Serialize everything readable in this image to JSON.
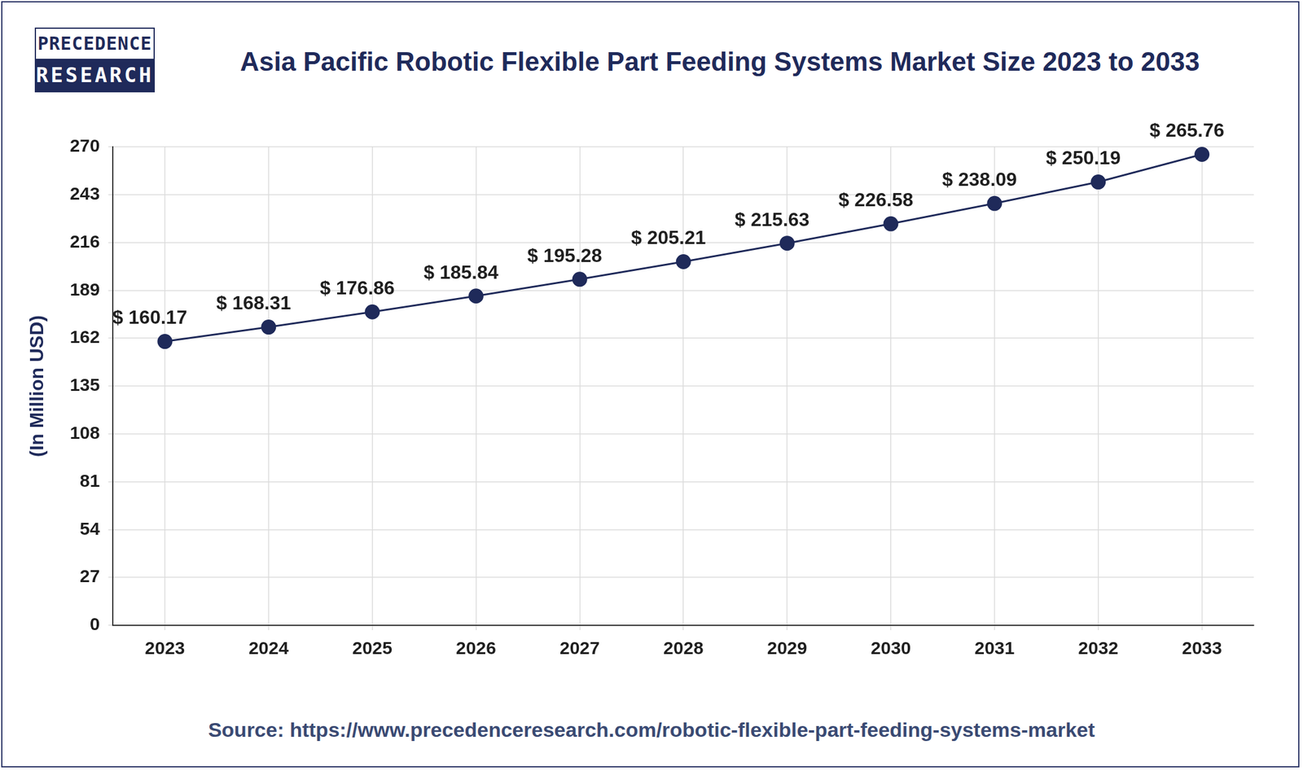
{
  "logo": [
    "PRECEDENCE",
    "RESEARCH"
  ],
  "source": "Source: https://www.precedenceresearch.com/robotic-flexible-part-feeding-systems-market",
  "chart_data": {
    "type": "line",
    "title": "Asia Pacific Robotic Flexible Part Feeding Systems Market Size 2023 to 2033",
    "y_label": "(In Million USD)",
    "categories": [
      "2023",
      "2024",
      "2025",
      "2026",
      "2027",
      "2028",
      "2029",
      "2030",
      "2031",
      "2032",
      "2033"
    ],
    "values": [
      160.17,
      168.31,
      176.86,
      185.84,
      195.28,
      205.21,
      215.63,
      226.58,
      238.09,
      250.19,
      265.76
    ],
    "value_labels": [
      "$ 160.17",
      "$ 168.31",
      "$ 176.86",
      "$ 185.84",
      "$ 195.28",
      "$ 205.21",
      "$ 215.63",
      "$ 226.58",
      "$ 238.09",
      "$ 250.19",
      "$ 265.76"
    ],
    "color": "#1f2a5a",
    "marker": "circle",
    "ylim": [
      0,
      270
    ],
    "yticks": [
      0,
      27,
      54,
      81,
      108,
      135,
      162,
      189,
      216,
      243,
      270
    ],
    "grid": true,
    "data_labels": true
  }
}
